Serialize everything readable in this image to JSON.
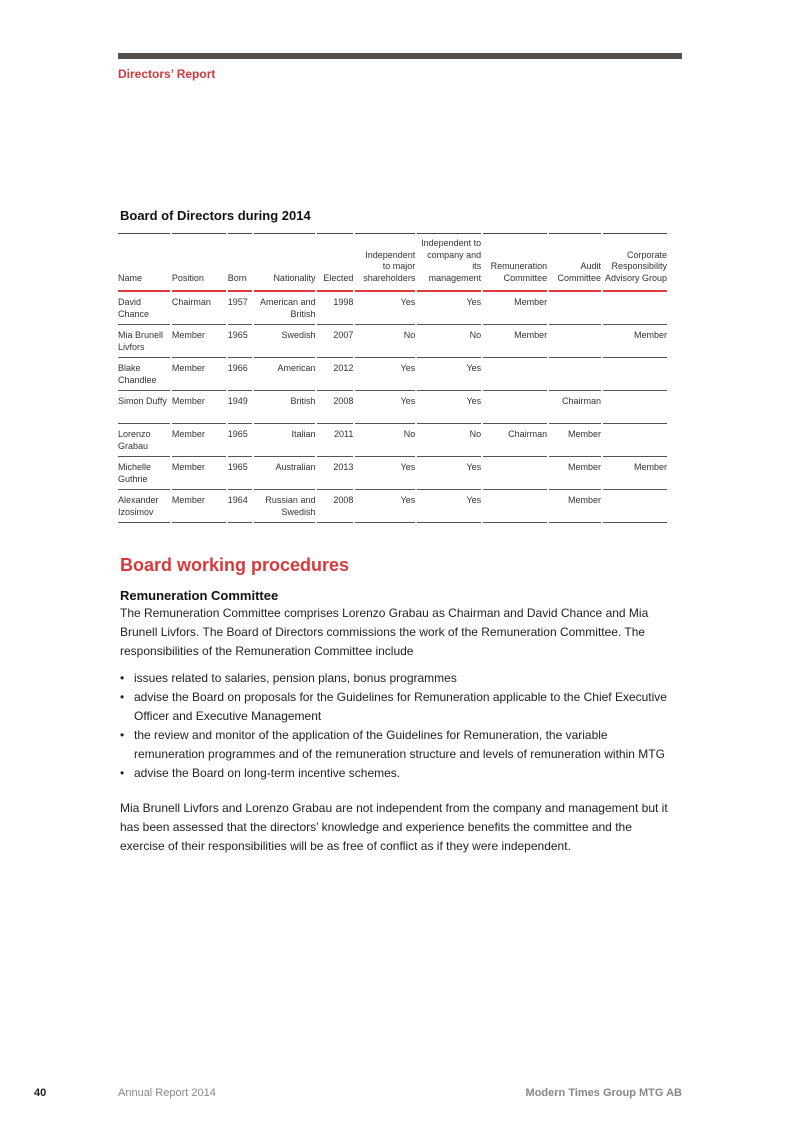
{
  "header": {
    "section": "Directors’ Report"
  },
  "table": {
    "title": "Board of Directors during 2014",
    "columns": [
      "Name",
      "Position",
      "Born",
      "Nationality",
      "Elected",
      "Independent to major shareholders",
      "Independent to company and its management",
      "Remuneration Committee",
      "Audit Committee",
      "Corporate Responsibility Advisory Group"
    ],
    "rows": [
      [
        "David Chance",
        "Chairman",
        "1957",
        "American and British",
        "1998",
        "Yes",
        "Yes",
        "Member",
        "",
        ""
      ],
      [
        "Mia Brunell Livfors",
        "Member",
        "1965",
        "Swedish",
        "2007",
        "No",
        "No",
        "Member",
        "",
        "Member"
      ],
      [
        "Blake Chandlee",
        "Member",
        "1966",
        "American",
        "2012",
        "Yes",
        "Yes",
        "",
        "",
        ""
      ],
      [
        "Simon Duffy",
        "Member",
        "1949",
        "British",
        "2008",
        "Yes",
        "Yes",
        "",
        "Chairman",
        ""
      ],
      [
        "Lorenzo Grabau",
        "Member",
        "1965",
        "Italian",
        "2011",
        "No",
        "No",
        "Chairman",
        "Member",
        ""
      ],
      [
        "Michelle Guthrie",
        "Member",
        "1965",
        "Australian",
        "2013",
        "Yes",
        "Yes",
        "",
        "Member",
        "Member"
      ],
      [
        "Alexander Izosimov",
        "Member",
        "1964",
        "Russian and Swedish",
        "2008",
        "Yes",
        "Yes",
        "",
        "Member",
        ""
      ]
    ]
  },
  "procedures": {
    "title": "Board working procedures",
    "subtitle": "Remuneration Committee",
    "intro": "The Remuneration Committee comprises Lorenzo Grabau as Chairman and David Chance and Mia Brunell Livfors. The Board of Directors commissions the work of the Remuneration Committee. The responsibilities of the Remuneration Committee include",
    "bullets": [
      "issues related to salaries, pension plans, bonus programmes",
      "advise the Board on proposals for the Guidelines for Remuneration applicable to the Chief Executive Officer and Executive Management",
      "the review and monitor of the application of the Guidelines for Remuneration, the variable remuneration programmes and of the remuneration structure and levels of remuneration within MTG",
      "advise the Board on long-term incentive schemes."
    ],
    "closing": "Mia Brunell Livfors and Lorenzo Grabau are not independent from the company and management but it has been assessed that the directors’ knowledge and experience benefits the committee and the exercise of their responsibilities will be as free of conflict as if they were independent."
  },
  "footer": {
    "page": "40",
    "report": "Annual Report 2014",
    "company": "Modern Times Group MTG AB"
  }
}
